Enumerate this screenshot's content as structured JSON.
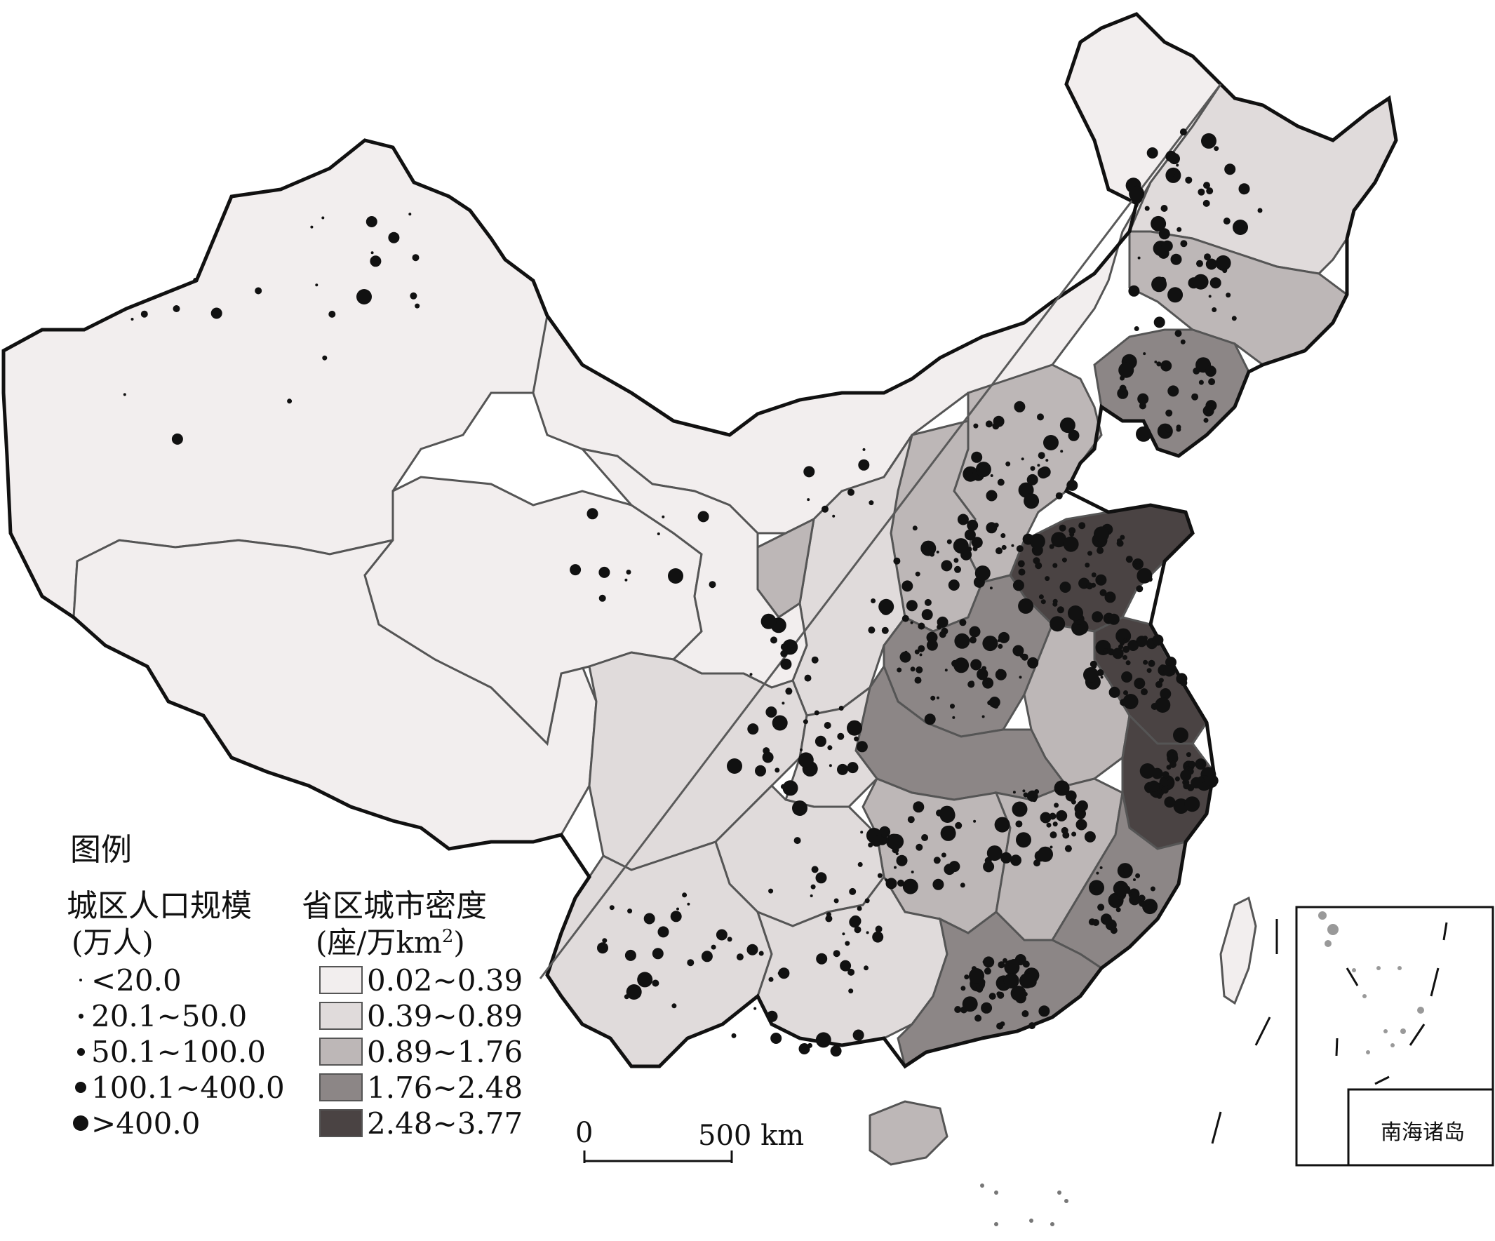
{
  "legend": {
    "title": "图例",
    "size_title": "城区人口规模",
    "size_unit": "(万人)",
    "density_title": "省区城市密度",
    "density_unit_prefix": "(座/万km",
    "density_unit_sup": "2",
    "density_unit_suffix": ")",
    "size_classes": [
      {
        "label": "<20.0"
      },
      {
        "label": "20.1~50.0"
      },
      {
        "label": "50.1~100.0"
      },
      {
        "label": "100.1~400.0"
      },
      {
        "label": ">400.0"
      }
    ],
    "density_classes": [
      {
        "label": "0.02~0.39",
        "color": "#f2eeee"
      },
      {
        "label": "0.39~0.89",
        "color": "#e0dbdb"
      },
      {
        "label": "0.89~1.76",
        "color": "#bdb7b7"
      },
      {
        "label": "1.76~2.48",
        "color": "#8c8686"
      },
      {
        "label": "2.48~3.77",
        "color": "#4a4343"
      }
    ]
  },
  "scale_bar": {
    "start": "0",
    "end": "500 km"
  },
  "inset": {
    "label": "南海诸岛"
  },
  "colors": {
    "border": "#555555",
    "outline": "#111111",
    "dot": "#111111",
    "line": "#5a5a5a"
  }
}
